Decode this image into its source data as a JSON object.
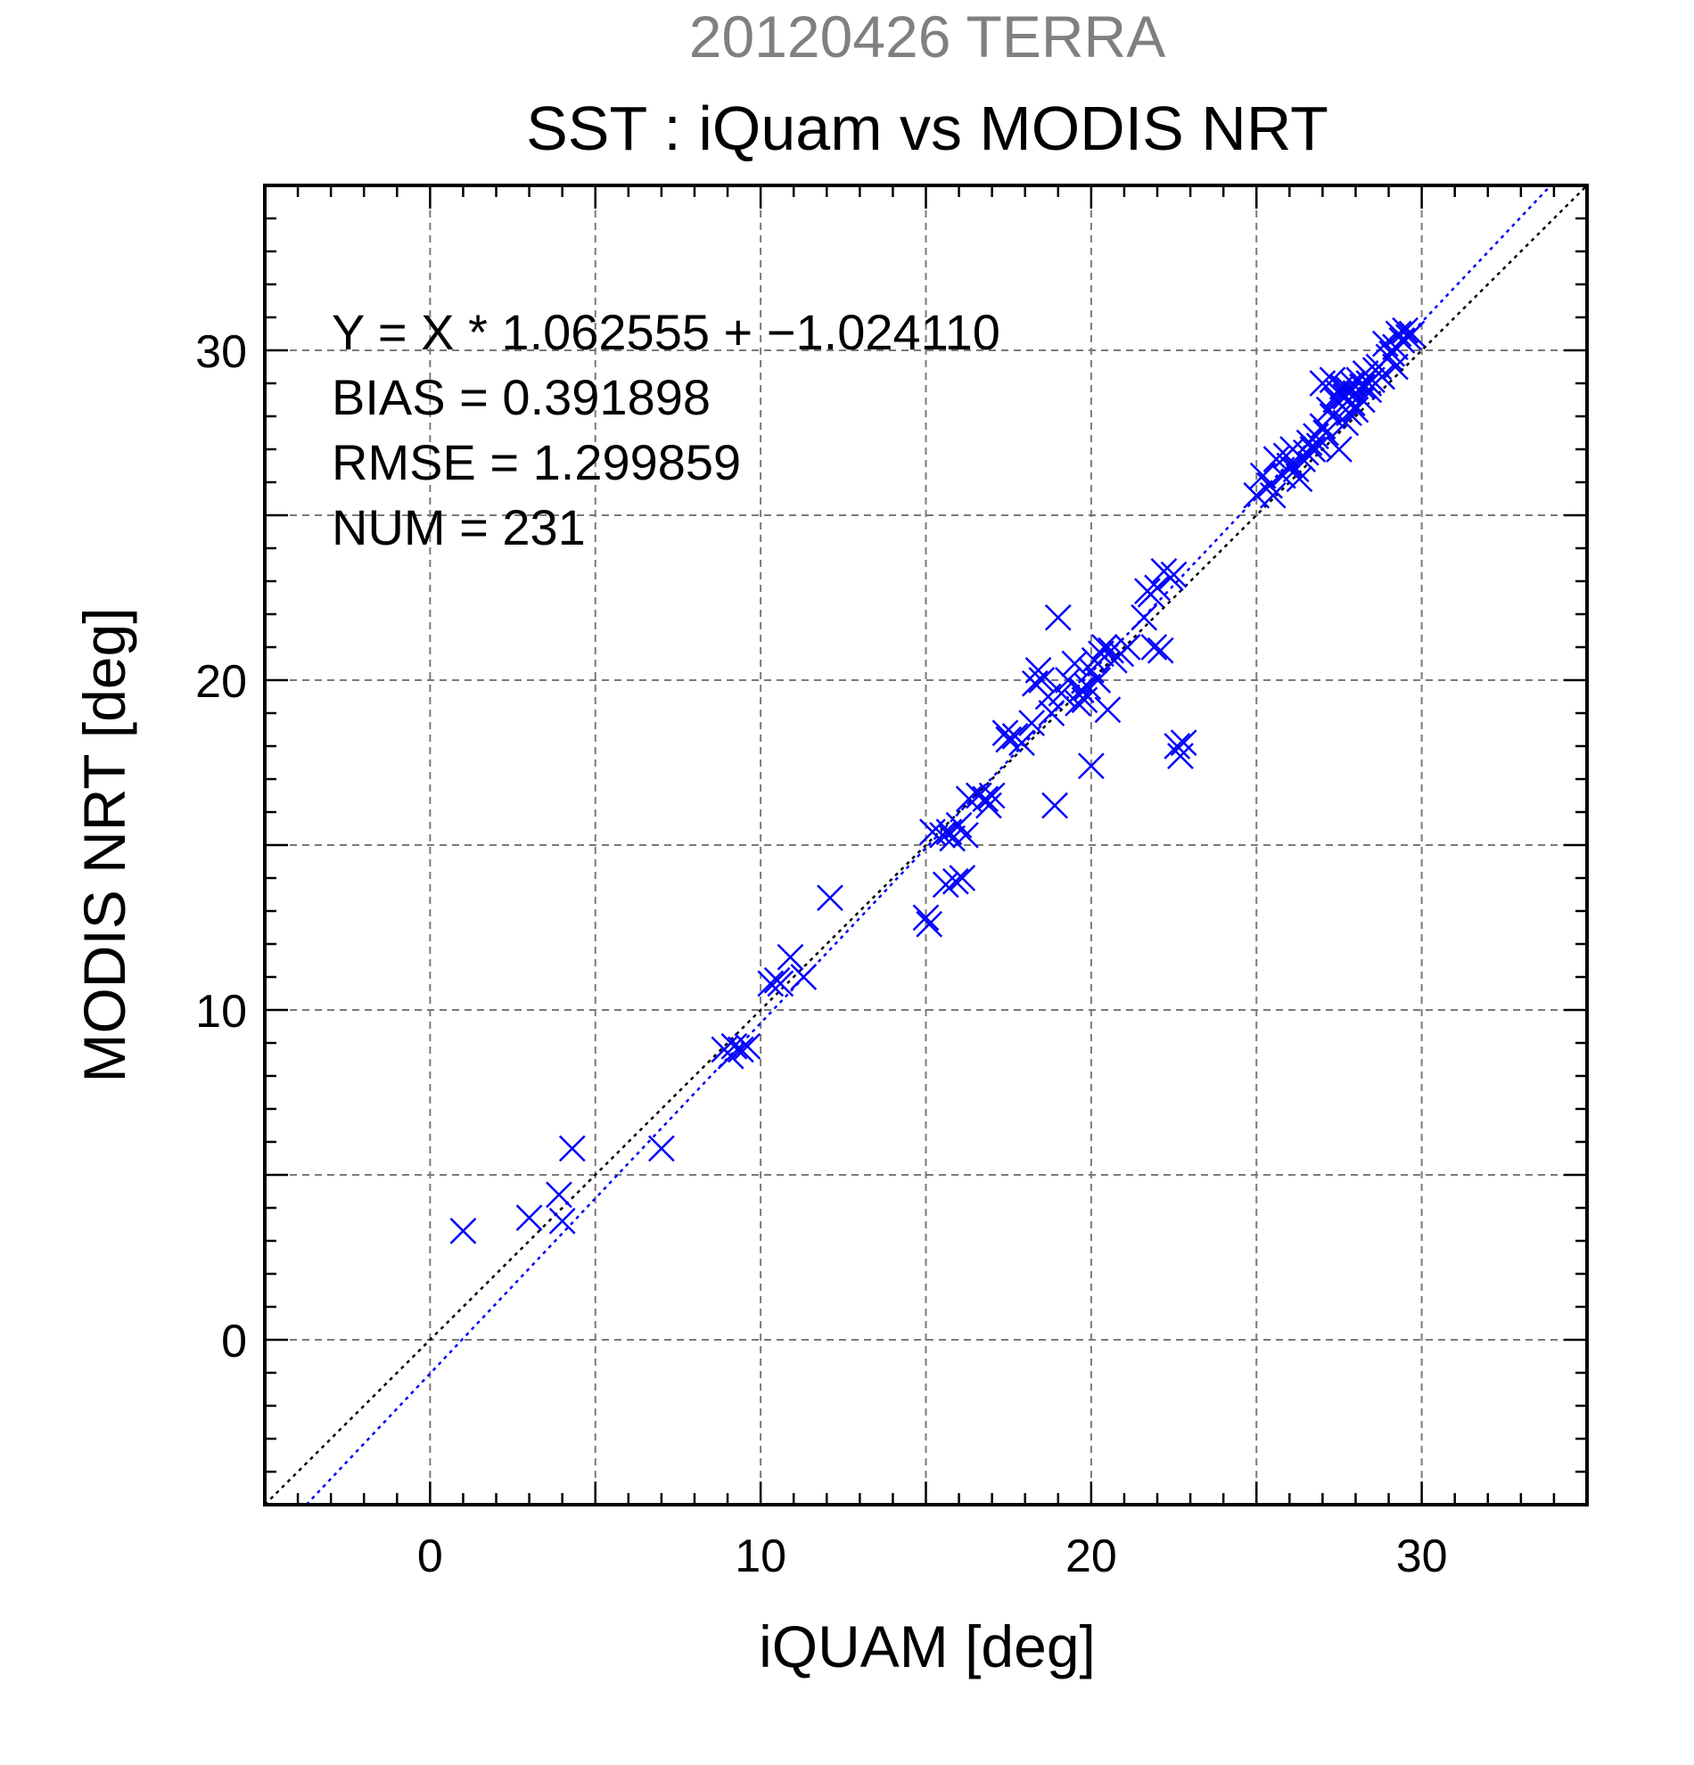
{
  "chart_data": {
    "type": "scatter",
    "supertitle": "20120426 TERRA",
    "title": "SST : iQuam vs MODIS NRT",
    "xlabel": "iQUAM [deg]",
    "ylabel": "MODIS NRT [deg]",
    "xlim": [
      -5,
      35
    ],
    "ylim": [
      -5,
      35
    ],
    "xticks": [
      0,
      10,
      20,
      30
    ],
    "yticks": [
      0,
      10,
      20,
      30
    ],
    "minor_tick_step": 1,
    "grid": true,
    "colors": {
      "marker": "#0000ff",
      "fit_line": "#0000ff",
      "identity_line": "#000000",
      "supertitle": "#808080"
    },
    "marker": "x",
    "stats": {
      "equation": "Y = X * 1.062555 + −1.024110",
      "bias": "BIAS = 0.391898",
      "rmse": "RMSE = 1.299859",
      "num": "NUM = 231"
    },
    "lines": [
      {
        "role": "identity",
        "slope": 1.0,
        "intercept": 0.0
      },
      {
        "role": "fit",
        "slope": 1.062555,
        "intercept": -1.02411
      }
    ],
    "points": [
      [
        1.0,
        3.3
      ],
      [
        3.0,
        3.7
      ],
      [
        3.9,
        4.4
      ],
      [
        4.0,
        3.6
      ],
      [
        4.3,
        5.8
      ],
      [
        7.0,
        5.8
      ],
      [
        8.9,
        8.8
      ],
      [
        9.1,
        8.6
      ],
      [
        9.2,
        8.9
      ],
      [
        9.4,
        8.8
      ],
      [
        9.6,
        8.9
      ],
      [
        10.3,
        10.8
      ],
      [
        10.5,
        10.9
      ],
      [
        10.6,
        10.8
      ],
      [
        10.9,
        11.6
      ],
      [
        11.3,
        11.0
      ],
      [
        12.1,
        13.4
      ],
      [
        15.0,
        12.8
      ],
      [
        15.1,
        12.6
      ],
      [
        15.2,
        15.4
      ],
      [
        15.5,
        15.3
      ],
      [
        15.6,
        13.8
      ],
      [
        15.7,
        15.4
      ],
      [
        15.8,
        15.2
      ],
      [
        15.9,
        13.9
      ],
      [
        16.0,
        15.6
      ],
      [
        16.1,
        14.0
      ],
      [
        16.2,
        15.3
      ],
      [
        16.3,
        16.4
      ],
      [
        16.6,
        16.5
      ],
      [
        16.8,
        16.4
      ],
      [
        16.9,
        16.2
      ],
      [
        17.0,
        16.5
      ],
      [
        17.4,
        18.4
      ],
      [
        17.5,
        18.2
      ],
      [
        17.7,
        18.3
      ],
      [
        17.9,
        18.1
      ],
      [
        18.2,
        18.7
      ],
      [
        18.3,
        19.9
      ],
      [
        18.4,
        20.3
      ],
      [
        18.5,
        20.0
      ],
      [
        18.7,
        19.5
      ],
      [
        18.8,
        19.0
      ],
      [
        18.9,
        16.2
      ],
      [
        19.0,
        21.9
      ],
      [
        19.1,
        19.6
      ],
      [
        19.3,
        20.0
      ],
      [
        19.5,
        20.5
      ],
      [
        19.6,
        19.3
      ],
      [
        19.7,
        19.7
      ],
      [
        19.8,
        19.4
      ],
      [
        19.9,
        19.8
      ],
      [
        20.0,
        17.4
      ],
      [
        20.0,
        20.3
      ],
      [
        20.1,
        20.6
      ],
      [
        20.2,
        20.0
      ],
      [
        20.3,
        20.8
      ],
      [
        20.4,
        21.0
      ],
      [
        20.5,
        19.1
      ],
      [
        20.6,
        20.9
      ],
      [
        20.7,
        20.6
      ],
      [
        20.9,
        20.8
      ],
      [
        21.1,
        21.0
      ],
      [
        21.6,
        21.9
      ],
      [
        21.7,
        22.7
      ],
      [
        21.8,
        22.6
      ],
      [
        21.9,
        21.0
      ],
      [
        22.0,
        22.8
      ],
      [
        22.1,
        20.9
      ],
      [
        22.2,
        23.3
      ],
      [
        22.4,
        23.1
      ],
      [
        22.5,
        23.2
      ],
      [
        22.6,
        18.0
      ],
      [
        22.7,
        17.7
      ],
      [
        22.8,
        18.1
      ],
      [
        25.0,
        25.6
      ],
      [
        25.2,
        26.2
      ],
      [
        25.4,
        25.9
      ],
      [
        25.5,
        25.6
      ],
      [
        25.6,
        26.7
      ],
      [
        25.8,
        26.2
      ],
      [
        25.9,
        26.8
      ],
      [
        26.0,
        26.5
      ],
      [
        26.1,
        27.0
      ],
      [
        26.2,
        26.4
      ],
      [
        26.3,
        26.1
      ],
      [
        26.4,
        26.7
      ],
      [
        26.5,
        26.9
      ],
      [
        26.6,
        27.2
      ],
      [
        26.7,
        27.0
      ],
      [
        26.8,
        27.4
      ],
      [
        26.9,
        27.1
      ],
      [
        27.0,
        27.7
      ],
      [
        27.0,
        29.0
      ],
      [
        27.1,
        27.5
      ],
      [
        27.2,
        28.2
      ],
      [
        27.3,
        28.0
      ],
      [
        27.3,
        29.1
      ],
      [
        27.4,
        28.5
      ],
      [
        27.5,
        27.0
      ],
      [
        27.5,
        28.7
      ],
      [
        27.6,
        28.3
      ],
      [
        27.6,
        28.9
      ],
      [
        27.7,
        27.8
      ],
      [
        27.7,
        28.6
      ],
      [
        27.8,
        28.1
      ],
      [
        27.8,
        28.8
      ],
      [
        27.9,
        28.4
      ],
      [
        27.9,
        29.0
      ],
      [
        28.0,
        28.7
      ],
      [
        28.0,
        28.2
      ],
      [
        28.1,
        29.1
      ],
      [
        28.2,
        28.5
      ],
      [
        28.2,
        28.9
      ],
      [
        28.3,
        29.3
      ],
      [
        28.4,
        28.8
      ],
      [
        28.5,
        29.1
      ],
      [
        28.6,
        29.4
      ],
      [
        28.7,
        29.5
      ],
      [
        28.8,
        29.2
      ],
      [
        28.9,
        30.2
      ],
      [
        29.0,
        29.8
      ],
      [
        29.1,
        29.9
      ],
      [
        29.2,
        30.1
      ],
      [
        29.3,
        30.5
      ],
      [
        29.4,
        30.3
      ],
      [
        29.5,
        30.6
      ],
      [
        29.6,
        30.4
      ],
      [
        29.7,
        30.5
      ],
      [
        29.2,
        29.5
      ],
      [
        28.4,
        29.0
      ]
    ]
  }
}
